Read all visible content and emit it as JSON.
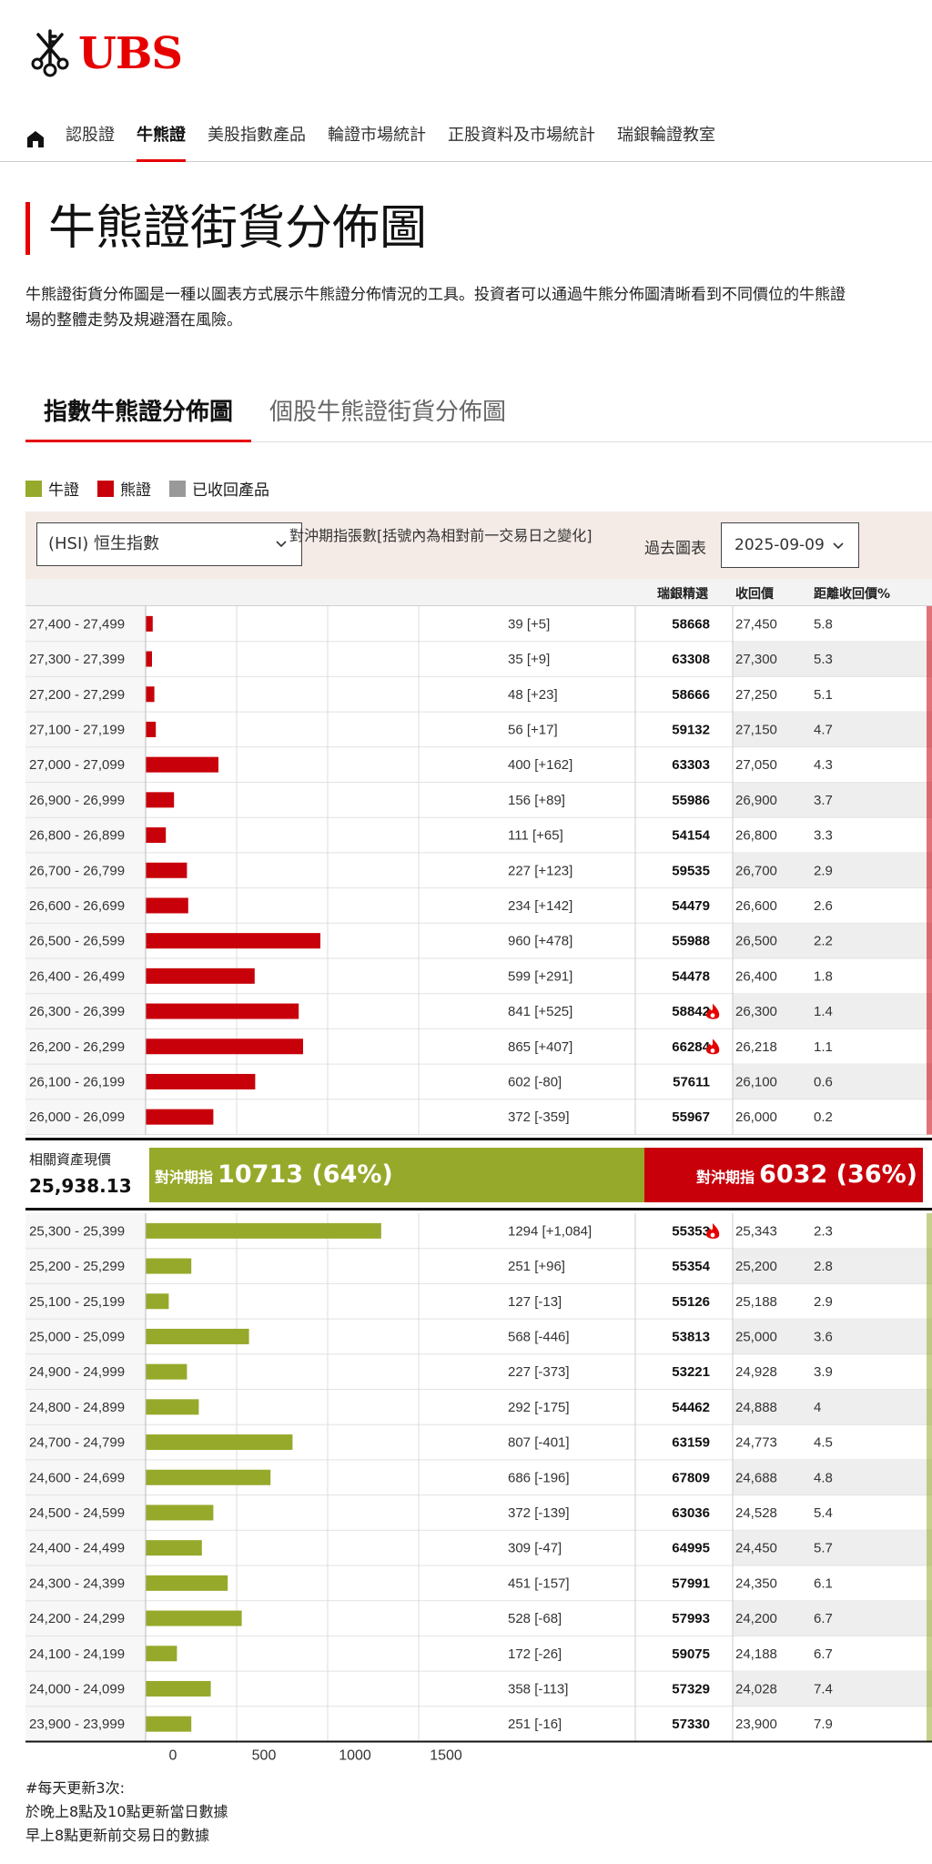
{
  "brand": {
    "name": "UBS"
  },
  "nav": {
    "items": [
      {
        "label": "認股證"
      },
      {
        "label": "牛熊證"
      },
      {
        "label": "美股指數產品"
      },
      {
        "label": "輪證市場統計"
      },
      {
        "label": "正股資料及市場統計"
      },
      {
        "label": "瑞銀輪證教室"
      }
    ],
    "active": "牛熊證"
  },
  "page": {
    "title": "牛熊證街貨分佈圖",
    "intro_line1": "牛熊證街貨分佈圖是一種以圖表方式展示牛熊證分佈情況的工具。投資者可以通過牛熊分佈圖清晰看到不同價位的牛熊證",
    "intro_line2": "場的整體走勢及規避潛在風險。"
  },
  "tabs": [
    {
      "label": "指數牛熊證分佈圖",
      "active": true
    },
    {
      "label": "個股牛熊證街貨分佈圖",
      "active": false
    }
  ],
  "legend": [
    {
      "label": "牛證",
      "color": "#97a92a"
    },
    {
      "label": "熊證",
      "color": "#c8000a"
    },
    {
      "label": "已收回產品",
      "color": "#999999"
    }
  ],
  "filters": {
    "index_select": "(HSI) 恒生指數",
    "description": "對沖期指張數[括號內為相對前一交易日之變化]",
    "past_chart_label": "過去圖表",
    "date": "2025-09-09"
  },
  "columns": {
    "ubs_pick": "瑞銀精選",
    "call_price": "收回價",
    "distance": "距離收回價%"
  },
  "chart_data": {
    "type": "bar",
    "orientation": "horizontal",
    "x_ticks": [
      "0",
      "500",
      "1000",
      "1500"
    ],
    "xlim": [
      0,
      2000
    ],
    "grid": true,
    "bear": [
      {
        "range": "27,400 - 27,499",
        "value": 39,
        "change": "[+5]",
        "label": "39 [+5]",
        "code": "58668",
        "hot": false,
        "call_price": "27,450",
        "distance": "5.8"
      },
      {
        "range": "27,300 - 27,399",
        "value": 35,
        "change": "[+9]",
        "label": "35 [+9]",
        "code": "63308",
        "hot": false,
        "call_price": "27,300",
        "distance": "5.3"
      },
      {
        "range": "27,200 - 27,299",
        "value": 48,
        "change": "[+23]",
        "label": "48 [+23]",
        "code": "58666",
        "hot": false,
        "call_price": "27,250",
        "distance": "5.1"
      },
      {
        "range": "27,100 - 27,199",
        "value": 56,
        "change": "[+17]",
        "label": "56 [+17]",
        "code": "59132",
        "hot": false,
        "call_price": "27,150",
        "distance": "4.7"
      },
      {
        "range": "27,000 - 27,099",
        "value": 400,
        "change": "[+162]",
        "label": "400 [+162]",
        "code": "63303",
        "hot": false,
        "call_price": "27,050",
        "distance": "4.3"
      },
      {
        "range": "26,900 - 26,999",
        "value": 156,
        "change": "[+89]",
        "label": "156 [+89]",
        "code": "55986",
        "hot": false,
        "call_price": "26,900",
        "distance": "3.7"
      },
      {
        "range": "26,800 - 26,899",
        "value": 111,
        "change": "[+65]",
        "label": "111 [+65]",
        "code": "54154",
        "hot": false,
        "call_price": "26,800",
        "distance": "3.3"
      },
      {
        "range": "26,700 - 26,799",
        "value": 227,
        "change": "[+123]",
        "label": "227 [+123]",
        "code": "59535",
        "hot": false,
        "call_price": "26,700",
        "distance": "2.9"
      },
      {
        "range": "26,600 - 26,699",
        "value": 234,
        "change": "[+142]",
        "label": "234 [+142]",
        "code": "54479",
        "hot": false,
        "call_price": "26,600",
        "distance": "2.6"
      },
      {
        "range": "26,500 - 26,599",
        "value": 960,
        "change": "[+478]",
        "label": "960 [+478]",
        "code": "55988",
        "hot": false,
        "call_price": "26,500",
        "distance": "2.2"
      },
      {
        "range": "26,400 - 26,499",
        "value": 599,
        "change": "[+291]",
        "label": "599 [+291]",
        "code": "54478",
        "hot": false,
        "call_price": "26,400",
        "distance": "1.8"
      },
      {
        "range": "26,300 - 26,399",
        "value": 841,
        "change": "[+525]",
        "label": "841 [+525]",
        "code": "58842",
        "hot": true,
        "call_price": "26,300",
        "distance": "1.4"
      },
      {
        "range": "26,200 - 26,299",
        "value": 865,
        "change": "[+407]",
        "label": "865 [+407]",
        "code": "66284",
        "hot": true,
        "call_price": "26,218",
        "distance": "1.1"
      },
      {
        "range": "26,100 - 26,199",
        "value": 602,
        "change": "[-80]",
        "label": "602 [-80]",
        "code": "57611",
        "hot": false,
        "call_price": "26,100",
        "distance": "0.6"
      },
      {
        "range": "26,000 - 26,099",
        "value": 372,
        "change": "[-359]",
        "label": "372 [-359]",
        "code": "55967",
        "hot": false,
        "call_price": "26,000",
        "distance": "0.2"
      }
    ],
    "bull": [
      {
        "range": "25,300 - 25,399",
        "value": 1294,
        "change": "[+1,084]",
        "label": "1294 [+1,084]",
        "code": "55353",
        "hot": true,
        "call_price": "25,343",
        "distance": "2.3"
      },
      {
        "range": "25,200 - 25,299",
        "value": 251,
        "change": "[+96]",
        "label": "251 [+96]",
        "code": "55354",
        "hot": false,
        "call_price": "25,200",
        "distance": "2.8"
      },
      {
        "range": "25,100 - 25,199",
        "value": 127,
        "change": "[-13]",
        "label": "127 [-13]",
        "code": "55126",
        "hot": false,
        "call_price": "25,188",
        "distance": "2.9"
      },
      {
        "range": "25,000 - 25,099",
        "value": 568,
        "change": "[-446]",
        "label": "568 [-446]",
        "code": "53813",
        "hot": false,
        "call_price": "25,000",
        "distance": "3.6"
      },
      {
        "range": "24,900 - 24,999",
        "value": 227,
        "change": "[-373]",
        "label": "227 [-373]",
        "code": "53221",
        "hot": false,
        "call_price": "24,928",
        "distance": "3.9"
      },
      {
        "range": "24,800 - 24,899",
        "value": 292,
        "change": "[-175]",
        "label": "292 [-175]",
        "code": "54462",
        "hot": false,
        "call_price": "24,888",
        "distance": "4"
      },
      {
        "range": "24,700 - 24,799",
        "value": 807,
        "change": "[-401]",
        "label": "807 [-401]",
        "code": "63159",
        "hot": false,
        "call_price": "24,773",
        "distance": "4.5"
      },
      {
        "range": "24,600 - 24,699",
        "value": 686,
        "change": "[-196]",
        "label": "686 [-196]",
        "code": "67809",
        "hot": false,
        "call_price": "24,688",
        "distance": "4.8"
      },
      {
        "range": "24,500 - 24,599",
        "value": 372,
        "change": "[-139]",
        "label": "372 [-139]",
        "code": "63036",
        "hot": false,
        "call_price": "24,528",
        "distance": "5.4"
      },
      {
        "range": "24,400 - 24,499",
        "value": 309,
        "change": "[-47]",
        "label": "309 [-47]",
        "code": "64995",
        "hot": false,
        "call_price": "24,450",
        "distance": "5.7"
      },
      {
        "range": "24,300 - 24,399",
        "value": 451,
        "change": "[-157]",
        "label": "451 [-157]",
        "code": "57991",
        "hot": false,
        "call_price": "24,350",
        "distance": "6.1"
      },
      {
        "range": "24,200 - 24,299",
        "value": 528,
        "change": "[-68]",
        "label": "528 [-68]",
        "code": "57993",
        "hot": false,
        "call_price": "24,200",
        "distance": "6.7"
      },
      {
        "range": "24,100 - 24,199",
        "value": 172,
        "change": "[-26]",
        "label": "172 [-26]",
        "code": "59075",
        "hot": false,
        "call_price": "24,188",
        "distance": "6.7"
      },
      {
        "range": "24,000 - 24,099",
        "value": 358,
        "change": "[-113]",
        "label": "358 [-113]",
        "code": "57329",
        "hot": false,
        "call_price": "24,028",
        "distance": "7.4"
      },
      {
        "range": "23,900 - 23,999",
        "value": 251,
        "change": "[-16]",
        "label": "251 [-16]",
        "code": "57330",
        "hot": false,
        "call_price": "23,900",
        "distance": "7.9"
      }
    ],
    "colors": {
      "bull": "#97a92a",
      "bear": "#c8000a"
    }
  },
  "summary": {
    "asset_label": "相關資產現價",
    "asset_value": "25,938.13",
    "bull_prefix": "對沖期指",
    "bull_value": "10713 (64%)",
    "bull_pct": 64,
    "bear_prefix": "對沖期指",
    "bear_value": "6032 (36%)",
    "bear_pct": 36
  },
  "footnote": {
    "line1": "#每天更新3次:",
    "line2": "於晚上8點及10點更新當日數據",
    "line3": "早上8點更新前交易日的數據"
  }
}
